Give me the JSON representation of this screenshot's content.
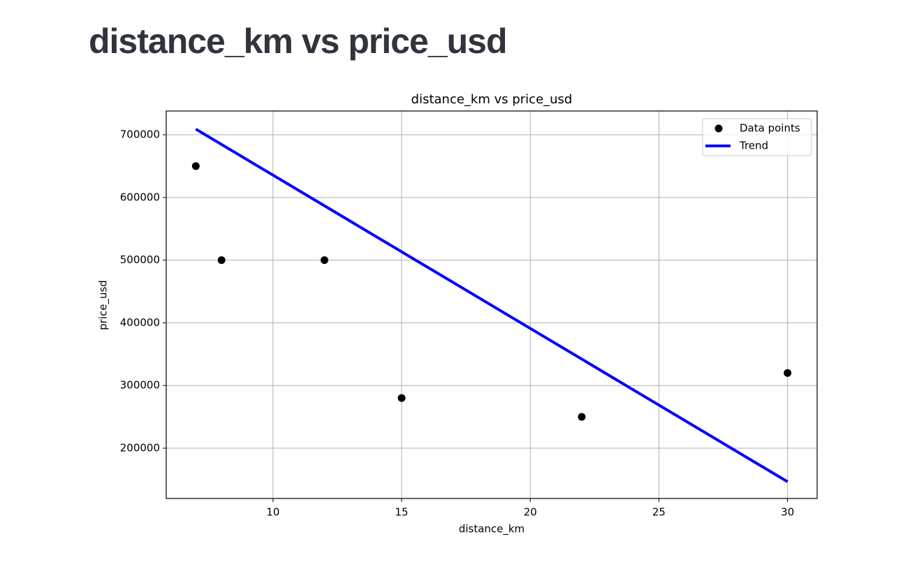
{
  "heading": "distance_km vs price_usd",
  "chart_data": {
    "type": "scatter",
    "title": "distance_km vs price_usd",
    "x_label": "distance_km",
    "y_label": "price_usd",
    "series": [
      {
        "name": "Data points",
        "type": "scatter",
        "color": "#000000",
        "x": [
          7,
          8,
          12,
          15,
          22,
          30
        ],
        "values": [
          650000,
          500000,
          500000,
          280000,
          250000,
          320000
        ]
      },
      {
        "name": "Trend",
        "type": "line",
        "color": "#0000ff",
        "x": [
          7,
          30
        ],
        "values": [
          709000,
          146500
        ]
      }
    ],
    "xlim": [
      5.85,
      31.15
    ],
    "xticks": [
      10,
      15,
      20,
      25,
      30
    ],
    "ylim": [
      119800,
      737900
    ],
    "yticks": [
      200000,
      300000,
      400000,
      500000,
      600000,
      700000
    ],
    "grid": true,
    "legend": "upper right"
  }
}
